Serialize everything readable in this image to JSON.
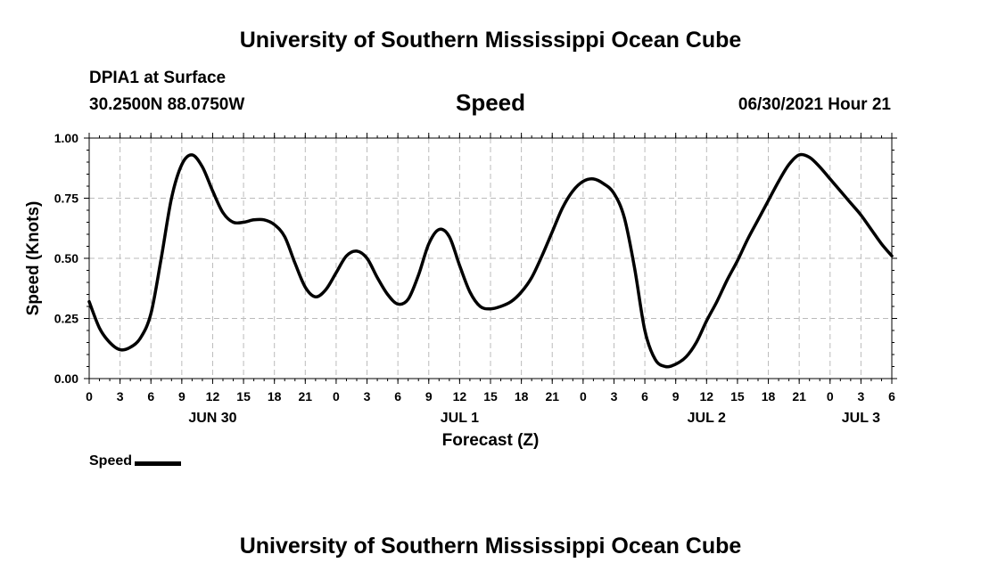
{
  "header": {
    "title_top": "University of Southern Mississippi Ocean Cube",
    "title_bottom": "University of Southern Mississippi Ocean Cube",
    "station": "DPIA1 at Surface",
    "coords": "30.2500N  88.0750W",
    "variable": "Speed",
    "datetime": "06/30/2021 Hour 21"
  },
  "legend": {
    "label": "Speed"
  },
  "chart_data": {
    "type": "line",
    "title": "Speed",
    "xlabel": "Forecast (Z)",
    "ylabel": "Speed (Knots)",
    "xlim": [
      0,
      78
    ],
    "ylim": [
      0,
      1.0
    ],
    "yticks": [
      "0.00",
      "0.25",
      "0.50",
      "0.75",
      "1.00"
    ],
    "xticks": [
      "0",
      "3",
      "6",
      "9",
      "12",
      "15",
      "18",
      "21",
      "0",
      "3",
      "6",
      "9",
      "12",
      "15",
      "18",
      "21",
      "0",
      "3",
      "6",
      "9",
      "12",
      "15",
      "18",
      "21",
      "0",
      "3",
      "6"
    ],
    "day_labels": [
      {
        "label": "JUN 30",
        "x": 12
      },
      {
        "label": "JUL 1",
        "x": 36
      },
      {
        "label": "JUL 2",
        "x": 60
      },
      {
        "label": "JUL 3",
        "x": 75
      }
    ],
    "grid": true,
    "series": [
      {
        "name": "Speed",
        "x": [
          0,
          1,
          2,
          3,
          4,
          5,
          6,
          7,
          8,
          9,
          10,
          11,
          12,
          13,
          14,
          15,
          16,
          17,
          18,
          19,
          20,
          21,
          22,
          23,
          24,
          25,
          26,
          27,
          28,
          29,
          30,
          31,
          32,
          33,
          34,
          35,
          36,
          37,
          38,
          39,
          40,
          41,
          42,
          43,
          44,
          45,
          46,
          47,
          48,
          49,
          50,
          51,
          52,
          53,
          54,
          55,
          56,
          57,
          58,
          59,
          60,
          61,
          62,
          63,
          64,
          65,
          66,
          67,
          68,
          69,
          70,
          71,
          72,
          73,
          74,
          75,
          76,
          77,
          78
        ],
        "values": [
          0.32,
          0.21,
          0.15,
          0.12,
          0.13,
          0.17,
          0.27,
          0.5,
          0.75,
          0.89,
          0.93,
          0.88,
          0.78,
          0.69,
          0.65,
          0.65,
          0.66,
          0.66,
          0.64,
          0.59,
          0.48,
          0.38,
          0.34,
          0.37,
          0.44,
          0.51,
          0.53,
          0.5,
          0.42,
          0.35,
          0.31,
          0.33,
          0.43,
          0.56,
          0.62,
          0.59,
          0.47,
          0.36,
          0.3,
          0.29,
          0.3,
          0.32,
          0.36,
          0.42,
          0.51,
          0.61,
          0.71,
          0.78,
          0.82,
          0.83,
          0.81,
          0.77,
          0.67,
          0.46,
          0.2,
          0.08,
          0.05,
          0.06,
          0.09,
          0.15,
          0.24,
          0.32,
          0.41,
          0.49,
          0.58,
          0.66,
          0.74,
          0.82,
          0.89,
          0.93,
          0.92,
          0.88,
          0.83,
          0.78,
          0.73,
          0.68,
          0.62,
          0.56,
          0.51
        ]
      }
    ]
  }
}
